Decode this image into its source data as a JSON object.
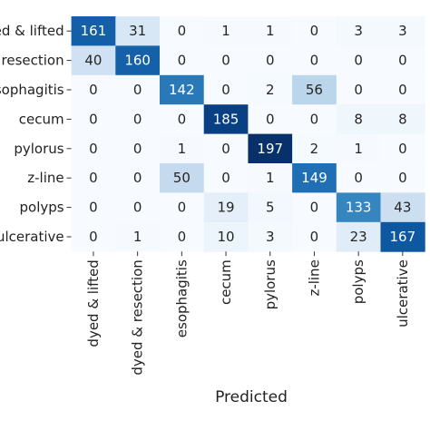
{
  "chart_data": {
    "type": "heatmap",
    "x_label": "Predicted",
    "x_categories": [
      "dyed & lifted",
      "dyed & resection",
      "esophagitis",
      "cecum",
      "pylorus",
      "z-line",
      "polyps",
      "ulcerative"
    ],
    "y_categories": [
      "dyed & lifted",
      "dyed & resection",
      "esophagitis",
      "cecum",
      "pylorus",
      "z-line",
      "polyps",
      "ulcerative"
    ],
    "values": [
      [
        161,
        31,
        0,
        1,
        1,
        0,
        3,
        3
      ],
      [
        40,
        160,
        0,
        0,
        0,
        0,
        0,
        0
      ],
      [
        0,
        0,
        142,
        0,
        2,
        56,
        0,
        0
      ],
      [
        0,
        0,
        0,
        185,
        0,
        0,
        8,
        8
      ],
      [
        0,
        0,
        1,
        0,
        197,
        2,
        1,
        0
      ],
      [
        0,
        0,
        50,
        0,
        1,
        149,
        0,
        0
      ],
      [
        0,
        0,
        0,
        19,
        5,
        0,
        133,
        43
      ],
      [
        0,
        1,
        0,
        10,
        3,
        0,
        23,
        167
      ]
    ],
    "colormap": "Blues"
  }
}
